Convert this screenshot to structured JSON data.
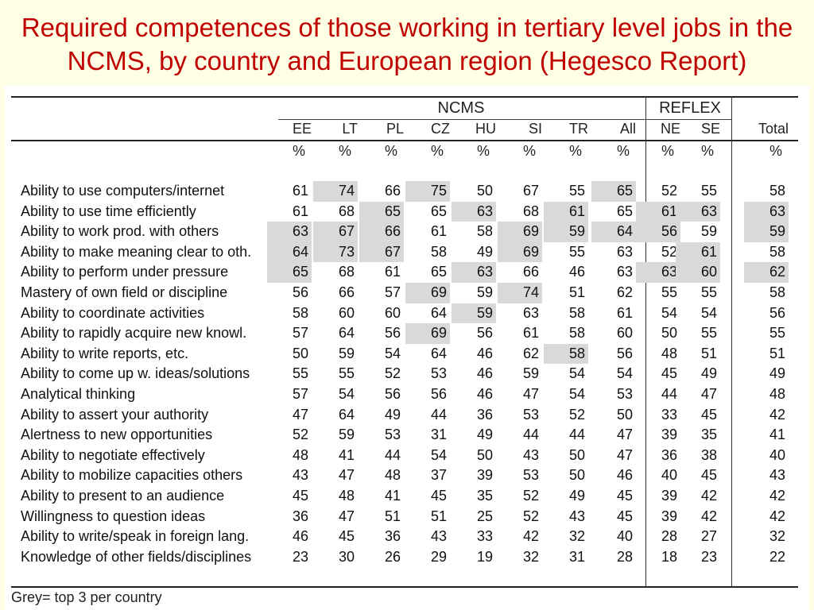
{
  "slide_title": "Required competences of those working in tertiary level jobs in the NCMS, by country and European region (Hegesco Report)",
  "groups": {
    "ncms": "NCMS",
    "reflex": "REFLEX"
  },
  "columns": [
    "EE",
    "LT",
    "PL",
    "CZ",
    "HU",
    "SI",
    "TR",
    "All",
    "NE",
    "SE",
    "Total"
  ],
  "unit_symbol": "%",
  "note": "Grey= top 3 per country",
  "chart_data": {
    "type": "table",
    "columns": [
      "EE",
      "LT",
      "PL",
      "CZ",
      "HU",
      "SI",
      "TR",
      "All",
      "NE",
      "SE",
      "Total"
    ],
    "rows": [
      {
        "label": "Ability to use computers/internet",
        "values": [
          61,
          74,
          66,
          75,
          50,
          67,
          55,
          65,
          52,
          55,
          58
        ],
        "grey": [
          false,
          true,
          false,
          true,
          false,
          false,
          false,
          true,
          false,
          false,
          false
        ]
      },
      {
        "label": "Ability to use time efficiently",
        "values": [
          61,
          68,
          65,
          65,
          63,
          68,
          61,
          65,
          61,
          63,
          63
        ],
        "grey": [
          false,
          false,
          true,
          false,
          true,
          false,
          true,
          false,
          true,
          true,
          true
        ]
      },
      {
        "label": "Ability to work prod. with others",
        "values": [
          63,
          67,
          66,
          61,
          58,
          69,
          59,
          64,
          56,
          59,
          59
        ],
        "grey": [
          true,
          true,
          true,
          false,
          false,
          true,
          true,
          true,
          true,
          false,
          true
        ]
      },
      {
        "label": "Ability to make meaning clear to oth.",
        "values": [
          64,
          73,
          67,
          58,
          49,
          69,
          55,
          63,
          52,
          61,
          58
        ],
        "grey": [
          true,
          true,
          true,
          false,
          false,
          true,
          false,
          false,
          false,
          true,
          false
        ]
      },
      {
        "label": "Ability to perform under pressure",
        "values": [
          65,
          68,
          61,
          65,
          63,
          66,
          46,
          63,
          63,
          60,
          62
        ],
        "grey": [
          true,
          false,
          false,
          false,
          true,
          false,
          false,
          false,
          true,
          true,
          true
        ]
      },
      {
        "label": "Mastery of own field or discipline",
        "values": [
          56,
          66,
          57,
          69,
          59,
          74,
          51,
          62,
          55,
          55,
          58
        ],
        "grey": [
          false,
          false,
          false,
          true,
          false,
          true,
          false,
          false,
          false,
          false,
          false
        ]
      },
      {
        "label": "Ability to coordinate activities",
        "values": [
          58,
          60,
          60,
          64,
          59,
          63,
          58,
          61,
          54,
          54,
          56
        ],
        "grey": [
          false,
          false,
          false,
          false,
          true,
          false,
          false,
          false,
          false,
          false,
          false
        ]
      },
      {
        "label": "Ability to rapidly acquire new knowl.",
        "values": [
          57,
          64,
          56,
          69,
          56,
          61,
          58,
          60,
          50,
          55,
          55
        ],
        "grey": [
          false,
          false,
          false,
          true,
          false,
          false,
          false,
          false,
          false,
          false,
          false
        ]
      },
      {
        "label": "Ability to write reports, etc.",
        "values": [
          50,
          59,
          54,
          64,
          46,
          62,
          58,
          56,
          48,
          51,
          51
        ],
        "grey": [
          false,
          false,
          false,
          false,
          false,
          false,
          true,
          false,
          false,
          false,
          false
        ]
      },
      {
        "label": "Ability to come up w. ideas/solutions",
        "values": [
          55,
          55,
          52,
          53,
          46,
          59,
          54,
          54,
          45,
          49,
          49
        ],
        "grey": [
          false,
          false,
          false,
          false,
          false,
          false,
          false,
          false,
          false,
          false,
          false
        ]
      },
      {
        "label": "Analytical thinking",
        "values": [
          57,
          54,
          56,
          56,
          46,
          47,
          54,
          53,
          44,
          47,
          48
        ],
        "grey": [
          false,
          false,
          false,
          false,
          false,
          false,
          false,
          false,
          false,
          false,
          false
        ]
      },
      {
        "label": "Ability to assert your authority",
        "values": [
          47,
          64,
          49,
          44,
          36,
          53,
          52,
          50,
          33,
          45,
          42
        ],
        "grey": [
          false,
          false,
          false,
          false,
          false,
          false,
          false,
          false,
          false,
          false,
          false
        ]
      },
      {
        "label": "Alertness to new opportunities",
        "values": [
          52,
          59,
          53,
          31,
          49,
          44,
          44,
          47,
          39,
          35,
          41
        ],
        "grey": [
          false,
          false,
          false,
          false,
          false,
          false,
          false,
          false,
          false,
          false,
          false
        ]
      },
      {
        "label": "Ability to negotiate effectively",
        "values": [
          48,
          41,
          44,
          54,
          50,
          43,
          50,
          47,
          36,
          38,
          40
        ],
        "grey": [
          false,
          false,
          false,
          false,
          false,
          false,
          false,
          false,
          false,
          false,
          false
        ]
      },
      {
        "label": "Ability to mobilize capacities others",
        "values": [
          43,
          47,
          48,
          37,
          39,
          53,
          50,
          46,
          40,
          45,
          43
        ],
        "grey": [
          false,
          false,
          false,
          false,
          false,
          false,
          false,
          false,
          false,
          false,
          false
        ]
      },
      {
        "label": "Ability to present to an audience",
        "values": [
          45,
          48,
          41,
          45,
          35,
          52,
          49,
          45,
          39,
          42,
          42
        ],
        "grey": [
          false,
          false,
          false,
          false,
          false,
          false,
          false,
          false,
          false,
          false,
          false
        ]
      },
      {
        "label": "Willingness to question ideas",
        "values": [
          36,
          47,
          51,
          51,
          25,
          52,
          43,
          45,
          39,
          42,
          42
        ],
        "grey": [
          false,
          false,
          false,
          false,
          false,
          false,
          false,
          false,
          false,
          false,
          false
        ]
      },
      {
        "label": "Ability to write/speak in foreign lang.",
        "values": [
          46,
          45,
          36,
          43,
          33,
          42,
          32,
          40,
          28,
          27,
          32
        ],
        "grey": [
          false,
          false,
          false,
          false,
          false,
          false,
          false,
          false,
          false,
          false,
          false
        ]
      },
      {
        "label": "Knowledge of other fields/disciplines",
        "values": [
          23,
          30,
          26,
          29,
          19,
          32,
          31,
          28,
          18,
          23,
          22
        ],
        "grey": [
          false,
          false,
          false,
          false,
          false,
          false,
          false,
          false,
          false,
          false,
          false
        ]
      }
    ]
  }
}
